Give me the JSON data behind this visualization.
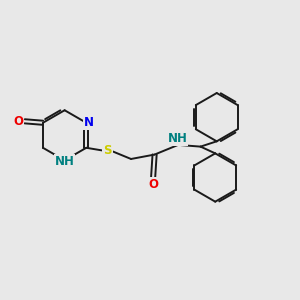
{
  "bg_color": "#e8e8e8",
  "bond_color": "#1a1a1a",
  "bond_width": 1.4,
  "atom_colors": {
    "N": "#0000ee",
    "O": "#ee0000",
    "S": "#cccc00",
    "NH": "#008080",
    "C": "#1a1a1a"
  },
  "font_size": 8.5
}
